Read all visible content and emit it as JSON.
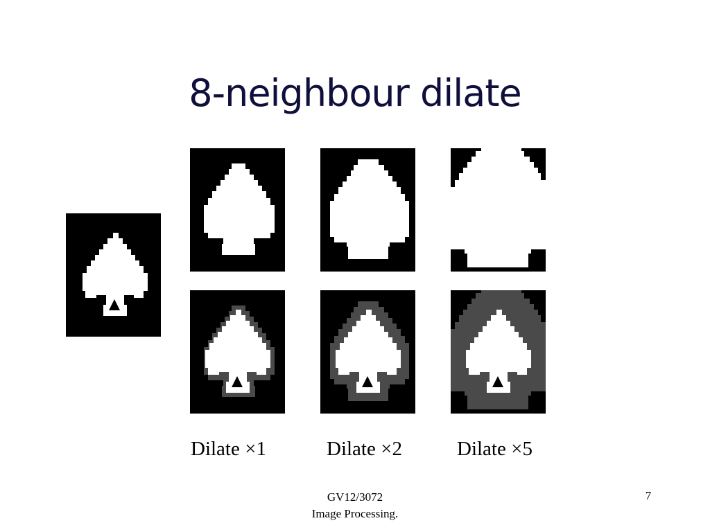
{
  "slide": {
    "title": "8-neighbour dilate",
    "captions": [
      "Dilate ×1",
      "Dilate ×2",
      "Dilate ×5"
    ],
    "footer": {
      "line1": "GV12/3072",
      "line2": "Image Processing.",
      "page_number": "7"
    }
  },
  "colors": {
    "title": "#0f0f3d",
    "foreground": "#ffffff",
    "background": "#000000",
    "dilated_region": "#4a4a4a"
  }
}
